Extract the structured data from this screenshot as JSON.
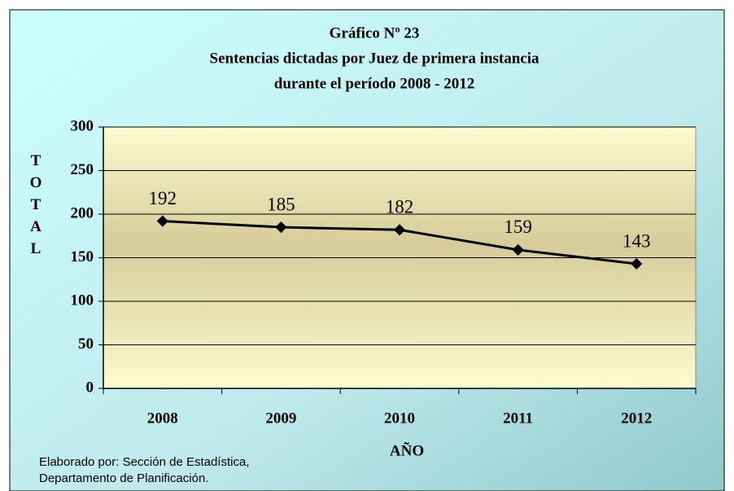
{
  "chart_data": {
    "type": "line",
    "title": [
      "Gráfico Nº 23",
      "Sentencias dictadas por Juez de primera instancia",
      "durante el período 2008 - 2012"
    ],
    "xlabel": "AÑO",
    "ylabel": "TOTAL",
    "categories": [
      "2008",
      "2009",
      "2010",
      "2011",
      "2012"
    ],
    "values": [
      192,
      185,
      182,
      159,
      143
    ],
    "color": "#000000",
    "ylim": [
      0,
      300
    ],
    "yticks": [
      0,
      50,
      100,
      150,
      200,
      250,
      300
    ],
    "grid": true,
    "note": [
      "Elaborado por: Sección de Estadística,",
      "Departamento de Planificación."
    ]
  }
}
